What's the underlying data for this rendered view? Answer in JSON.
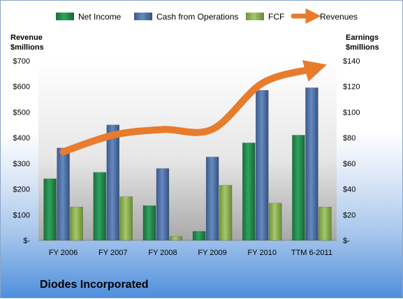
{
  "company_name": "Diodes Incorporated",
  "left_axis_title": [
    "Revenue",
    "$millions"
  ],
  "right_axis_title": [
    "Earnings",
    "$millions"
  ],
  "colors": {
    "net_income": "#1f8a4c",
    "cash_from_operations": "#4a6fa8",
    "fcf": "#8ab04d",
    "revenues": "#e87b2c"
  },
  "chart_data": {
    "type": "bar",
    "categories": [
      "FY 2006",
      "FY 2007",
      "FY 2008",
      "FY 2009",
      "FY 2010",
      "TTM 6-2011"
    ],
    "series": [
      {
        "name": "Net Income",
        "axis": "right",
        "kind": "bar",
        "values": [
          48,
          53,
          27,
          7,
          76,
          82
        ]
      },
      {
        "name": "Cash from Operations",
        "axis": "right",
        "kind": "bar",
        "values": [
          72,
          90,
          56,
          65,
          117,
          119
        ]
      },
      {
        "name": "FCF",
        "axis": "right",
        "kind": "bar",
        "values": [
          26,
          34,
          3,
          43,
          29,
          26
        ]
      },
      {
        "name": "Revenues",
        "axis": "left",
        "kind": "line",
        "values": [
          345,
          410,
          432,
          433,
          612,
          668
        ]
      }
    ],
    "left_ticks": [
      "$700",
      "$600",
      "$500",
      "$400",
      "$300",
      "$200",
      "$100",
      "$-"
    ],
    "right_ticks": [
      "$140",
      "$120",
      "$100",
      "$80",
      "$60",
      "$40",
      "$20",
      "$-"
    ],
    "left_ylim": [
      0,
      700
    ],
    "right_ylim": [
      0,
      140
    ],
    "legend_position": "top",
    "grid": false
  }
}
